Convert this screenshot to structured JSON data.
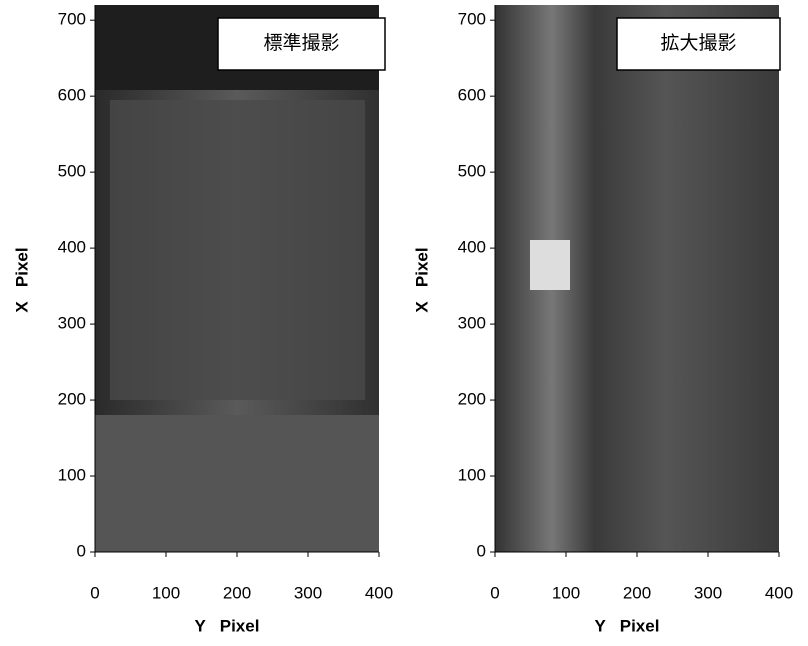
{
  "chart_data": [
    {
      "type": "image",
      "title": "標準撮影",
      "xlabel": "Y   Pixel",
      "ylabel": "X   Pixel",
      "xlim": [
        0,
        400
      ],
      "ylim": [
        0,
        720
      ],
      "xticks": [
        0,
        100,
        200,
        300,
        400
      ],
      "yticks": [
        0,
        100,
        200,
        300,
        400,
        500,
        600,
        700
      ]
    },
    {
      "type": "image",
      "title": "拡大撮影",
      "xlabel": "Y   Pixel",
      "ylabel": "X   Pixel",
      "xlim": [
        0,
        400
      ],
      "ylim": [
        0,
        720
      ],
      "xticks": [
        0,
        100,
        200,
        300,
        400
      ],
      "yticks": [
        0,
        100,
        200,
        300,
        400,
        500,
        600,
        700
      ]
    }
  ]
}
